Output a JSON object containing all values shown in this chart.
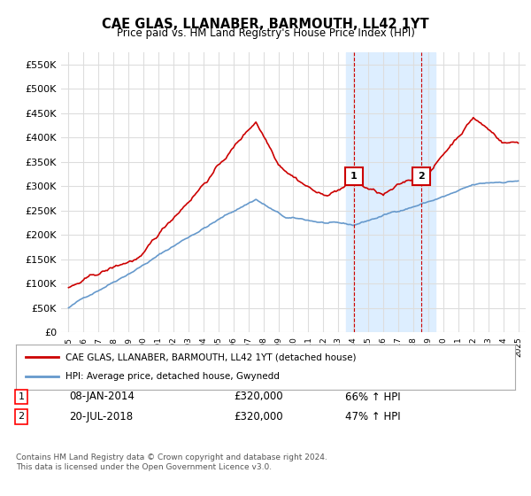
{
  "title": "CAE GLAS, LLANABER, BARMOUTH, LL42 1YT",
  "subtitle": "Price paid vs. HM Land Registry's House Price Index (HPI)",
  "legend_line1": "CAE GLAS, LLANABER, BARMOUTH, LL42 1YT (detached house)",
  "legend_line2": "HPI: Average price, detached house, Gwynedd",
  "annotation1_label": "1",
  "annotation1_date": "08-JAN-2014",
  "annotation1_price": "£320,000",
  "annotation1_hpi": "66% ↑ HPI",
  "annotation2_label": "2",
  "annotation2_date": "20-JUL-2018",
  "annotation2_price": "£320,000",
  "annotation2_hpi": "47% ↑ HPI",
  "footer": "Contains HM Land Registry data © Crown copyright and database right 2024.\nThis data is licensed under the Open Government Licence v3.0.",
  "red_color": "#cc0000",
  "blue_color": "#6699cc",
  "shaded_color": "#ddeeff",
  "grid_color": "#dddddd",
  "background_color": "#ffffff",
  "ylim": [
    0,
    575000
  ],
  "yticks": [
    0,
    50000,
    100000,
    150000,
    200000,
    250000,
    300000,
    350000,
    400000,
    450000,
    500000,
    550000
  ],
  "xlim_start": 1994.5,
  "xlim_end": 2025.5,
  "marker1_x": 2014.03,
  "marker1_y": 320000,
  "marker2_x": 2018.55,
  "marker2_y": 320000,
  "shade_x1": 2013.5,
  "shade_x2": 2019.5
}
